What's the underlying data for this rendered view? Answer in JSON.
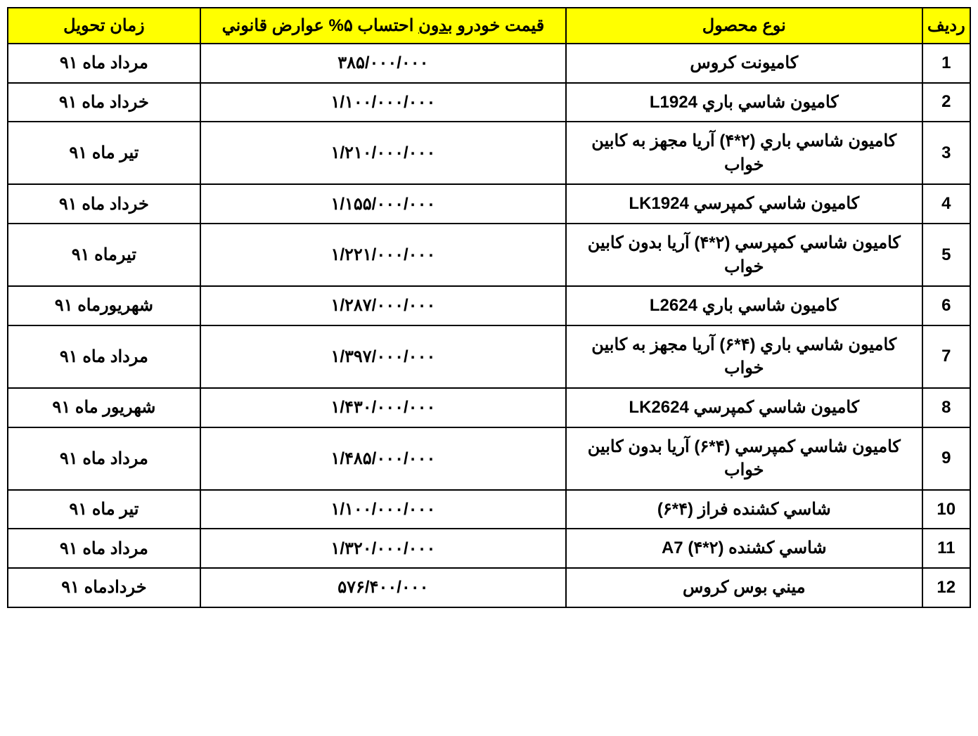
{
  "table": {
    "header_bg": "#ffff00",
    "border_color": "#000000",
    "columns": {
      "redif": "رديف",
      "product": "نوع محصول",
      "price_prefix": "قيمت خودرو ",
      "price_underline": "بدون",
      "price_suffix": " احتساب ۵% عوارض قانوني",
      "delivery": "زمان تحويل"
    },
    "rows": [
      {
        "index": "1",
        "product": "كاميونت كروس",
        "price": "۳۸۵/۰۰۰/۰۰۰",
        "delivery": "مرداد ماه ۹۱"
      },
      {
        "index": "2",
        "product": "كاميون شاسي باري L1924",
        "price": "۱/۱۰۰/۰۰۰/۰۰۰",
        "delivery": "خرداد ماه ۹۱"
      },
      {
        "index": "3",
        "product": "كاميون شاسي باري (۲*۴) آريا مجهز به كابين خواب",
        "price": "۱/۲۱۰/۰۰۰/۰۰۰",
        "delivery": "تير ماه ۹۱"
      },
      {
        "index": "4",
        "product": "كاميون شاسي كمپرسي LK1924",
        "price": "۱/۱۵۵/۰۰۰/۰۰۰",
        "delivery": "خرداد ماه ۹۱"
      },
      {
        "index": "5",
        "product": "كاميون شاسي كمپرسي (۲*۴) آريا بدون كابين خواب",
        "price": "۱/۲۲۱/۰۰۰/۰۰۰",
        "delivery": "تيرماه ۹۱"
      },
      {
        "index": "6",
        "product": "كاميون شاسي باري L2624",
        "price": "۱/۲۸۷/۰۰۰/۰۰۰",
        "delivery": "شهريورماه ۹۱"
      },
      {
        "index": "7",
        "product": "كاميون شاسي باري (۴*۶) آريا مجهز به كابين خواب",
        "price": "۱/۳۹۷/۰۰۰/۰۰۰",
        "delivery": "مرداد ماه ۹۱"
      },
      {
        "index": "8",
        "product": "كاميون شاسي كمپرسي  LK2624",
        "price": "۱/۴۳۰/۰۰۰/۰۰۰",
        "delivery": "شهريور ماه ۹۱"
      },
      {
        "index": "9",
        "product": "كاميون شاسي كمپرسي (۴*۶) آريا بدون كابين خواب",
        "price": "۱/۴۸۵/۰۰۰/۰۰۰",
        "delivery": "مرداد ماه ۹۱"
      },
      {
        "index": "10",
        "product": "شاسي كشنده فراز (۴*۶)",
        "price": "۱/۱۰۰/۰۰۰/۰۰۰",
        "delivery": "تير ماه ۹۱"
      },
      {
        "index": "11",
        "product": "شاسي كشنده (۲*۴) A7",
        "price": "۱/۳۲۰/۰۰۰/۰۰۰",
        "delivery": "مرداد ماه ۹۱"
      },
      {
        "index": "12",
        "product": "ميني بوس كروس",
        "price": "۵۷۶/۴۰۰/۰۰۰",
        "delivery": "خردادماه ۹۱"
      }
    ]
  }
}
